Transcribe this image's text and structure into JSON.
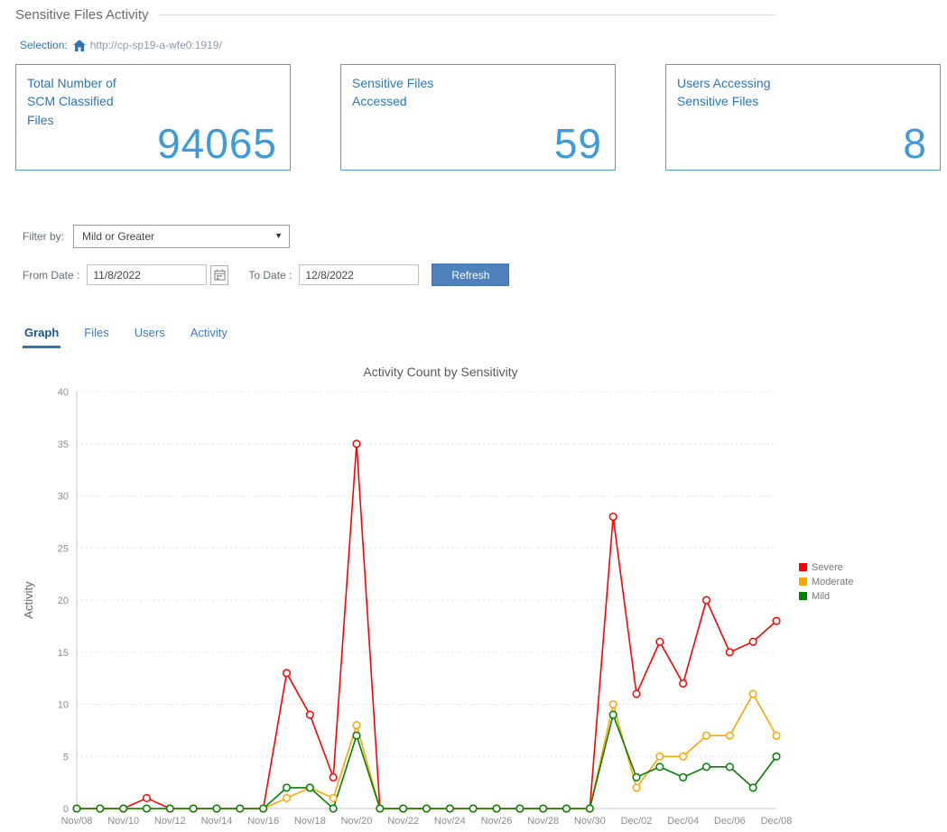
{
  "page": {
    "title": "Sensitive Files Activity"
  },
  "selection": {
    "label": "Selection:",
    "url": "http://cp-sp19-a-wfe0:1919/"
  },
  "summary_cards": [
    {
      "label": "Total Number of\nSCM Classified\nFiles",
      "value": "94065"
    },
    {
      "label": "Sensitive Files\nAccessed",
      "value": "59"
    },
    {
      "label": "Users Accessing\nSensitive Files",
      "value": "8"
    }
  ],
  "filters": {
    "filter_by_label": "Filter by:",
    "filter_by_value": "Mild or Greater",
    "from_date_label": "From Date :",
    "from_date_value": "11/8/2022",
    "to_date_label": "To Date :",
    "to_date_value": "12/8/2022",
    "refresh_label": "Refresh"
  },
  "tabs": {
    "items": [
      {
        "label": "Graph",
        "active": true
      },
      {
        "label": "Files",
        "active": false
      },
      {
        "label": "Users",
        "active": false
      },
      {
        "label": "Activity",
        "active": false
      }
    ]
  },
  "chart_data": {
    "type": "line",
    "title": "Activity Count by Sensitivity",
    "ylabel": "Activity",
    "ylim": [
      0,
      40
    ],
    "yticks": [
      0,
      5,
      10,
      15,
      20,
      25,
      30,
      35,
      40
    ],
    "x_tick_every": 2,
    "grid": "horizontal-dashed",
    "legend_position": "right",
    "x": [
      "Nov/08",
      "Nov/09",
      "Nov/10",
      "Nov/11",
      "Nov/12",
      "Nov/13",
      "Nov/14",
      "Nov/15",
      "Nov/16",
      "Nov/17",
      "Nov/18",
      "Nov/19",
      "Nov/20",
      "Nov/21",
      "Nov/22",
      "Nov/23",
      "Nov/24",
      "Nov/25",
      "Nov/26",
      "Nov/27",
      "Nov/28",
      "Nov/29",
      "Nov/30",
      "Dec/01",
      "Dec/02",
      "Dec/03",
      "Dec/04",
      "Dec/05",
      "Dec/06",
      "Dec/07",
      "Dec/08"
    ],
    "series": [
      {
        "name": "Severe",
        "color": "#ff0000",
        "values": [
          0,
          0,
          0,
          1,
          0,
          0,
          0,
          0,
          0,
          13,
          9,
          3,
          35,
          0,
          0,
          0,
          0,
          0,
          0,
          0,
          0,
          0,
          0,
          28,
          11,
          16,
          12,
          20,
          15,
          16,
          18
        ]
      },
      {
        "name": "Moderate",
        "color": "#ffa500",
        "values": [
          0,
          0,
          0,
          0,
          0,
          0,
          0,
          0,
          0,
          1,
          2,
          1,
          8,
          0,
          0,
          0,
          0,
          0,
          0,
          0,
          0,
          0,
          0,
          10,
          2,
          5,
          5,
          7,
          7,
          11,
          7
        ]
      },
      {
        "name": "Mild",
        "color": "#008000",
        "values": [
          0,
          0,
          0,
          0,
          0,
          0,
          0,
          0,
          0,
          2,
          2,
          0,
          7,
          0,
          0,
          0,
          0,
          0,
          0,
          0,
          0,
          0,
          0,
          9,
          3,
          4,
          3,
          4,
          4,
          2,
          5
        ]
      }
    ]
  }
}
